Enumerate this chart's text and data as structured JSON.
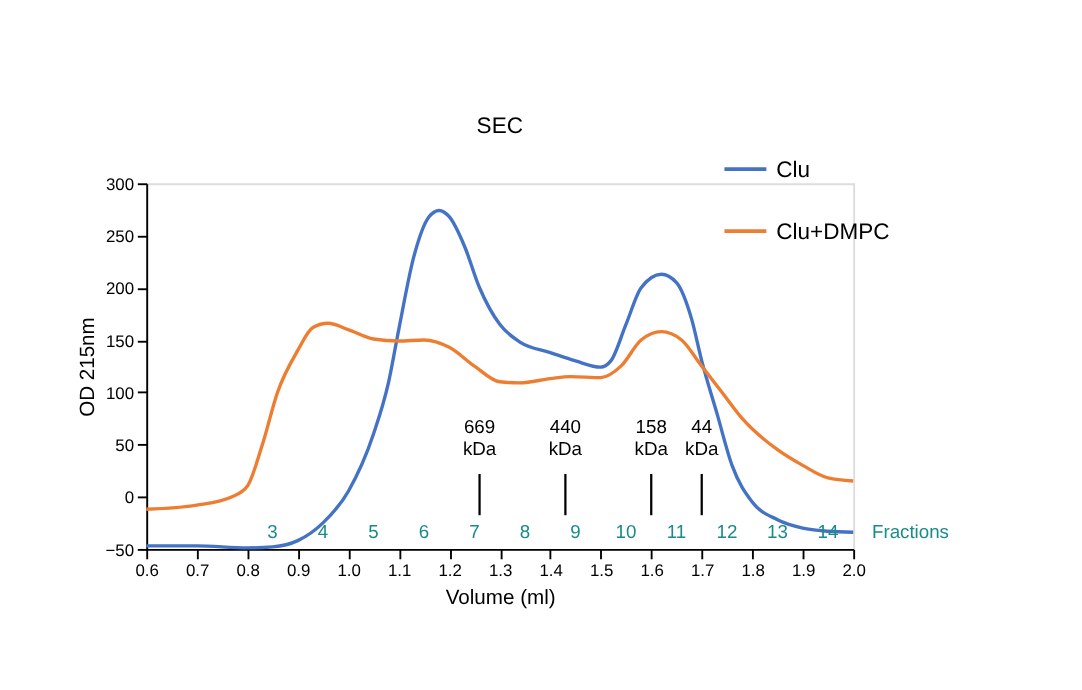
{
  "chart_data": {
    "type": "line",
    "title": "SEC",
    "xlabel": "Volume (ml)",
    "ylabel": "OD 215nm",
    "xlim": [
      0.6,
      2.0
    ],
    "xticks": [
      {
        "value": 0.6,
        "label": "0.6"
      },
      {
        "value": 0.7,
        "label": "0.7"
      },
      {
        "value": 0.8,
        "label": "0.8"
      },
      {
        "value": 0.9,
        "label": "0.9"
      },
      {
        "value": 1.0,
        "label": "1.0"
      },
      {
        "value": 1.1,
        "label": "1.1"
      },
      {
        "value": 1.2,
        "label": "1.2"
      },
      {
        "value": 1.3,
        "label": "1.3"
      },
      {
        "value": 1.4,
        "label": "1.4"
      },
      {
        "value": 1.5,
        "label": "1.5"
      },
      {
        "value": 1.6,
        "label": "1.6"
      },
      {
        "value": 1.7,
        "label": "1.7"
      },
      {
        "value": 1.8,
        "label": "1.8"
      },
      {
        "value": 1.9,
        "label": "1.9"
      },
      {
        "value": 2.0,
        "label": "2.0"
      }
    ],
    "ylim": [
      -50,
      300
    ],
    "yticks": [
      -50,
      0,
      50,
      100,
      150,
      200,
      250,
      300
    ],
    "grid": false,
    "legend": "top right",
    "marker": "none",
    "line_style": "solid",
    "series": [
      {
        "name": "Clu",
        "color": "#4472c4",
        "x": [
          0.6,
          0.7,
          0.8,
          0.85,
          0.9,
          0.95,
          1.0,
          1.05,
          1.08,
          1.1,
          1.13,
          1.16,
          1.18,
          1.2,
          1.23,
          1.26,
          1.3,
          1.34,
          1.4,
          1.45,
          1.5,
          1.52,
          1.55,
          1.58,
          1.62,
          1.65,
          1.68,
          1.7,
          1.73,
          1.76,
          1.8,
          1.85,
          1.9,
          1.95,
          2.0
        ],
        "values": [
          -47,
          -47,
          -49,
          -48,
          -42,
          -25,
          5,
          60,
          110,
          160,
          230,
          268,
          274,
          268,
          240,
          200,
          165,
          148,
          138,
          130,
          124,
          130,
          165,
          200,
          213,
          205,
          170,
          130,
          80,
          30,
          -5,
          -22,
          -30,
          -33,
          -34
        ]
      },
      {
        "name": "Clu+DMPC",
        "color": "#ed7d31",
        "x": [
          0.6,
          0.7,
          0.77,
          0.8,
          0.83,
          0.86,
          0.9,
          0.93,
          0.96,
          1.0,
          1.05,
          1.1,
          1.15,
          1.2,
          1.25,
          1.3,
          1.34,
          1.4,
          1.44,
          1.5,
          1.54,
          1.58,
          1.62,
          1.66,
          1.7,
          1.74,
          1.78,
          1.85,
          1.9,
          1.95,
          2.0
        ],
        "values": [
          -12,
          -8,
          0,
          10,
          50,
          100,
          140,
          162,
          166,
          160,
          151,
          149,
          150,
          143,
          125,
          110,
          109,
          113,
          115,
          114,
          125,
          150,
          158,
          150,
          125,
          100,
          75,
          45,
          30,
          18,
          15
        ]
      }
    ],
    "ref_lines": [
      {
        "axis": "x",
        "value": 1.26,
        "label": "669\nkDa"
      },
      {
        "axis": "x",
        "value": 1.43,
        "label": "440\nkDa"
      },
      {
        "axis": "x",
        "value": 1.6,
        "label": "158\nkDa"
      },
      {
        "axis": "x",
        "value": 1.7,
        "label": "44\nkDa"
      }
    ],
    "x2label": "Fractions",
    "x2lim": [
      0.5,
      14.5
    ],
    "x2ticks": [
      3,
      4,
      5,
      6,
      7,
      8,
      9,
      10,
      11,
      12,
      13,
      14
    ]
  }
}
